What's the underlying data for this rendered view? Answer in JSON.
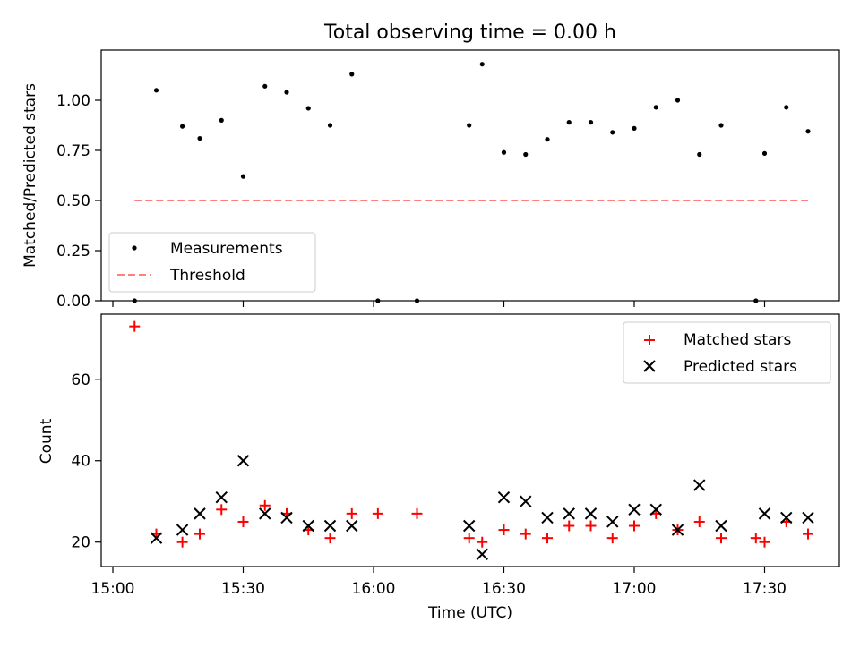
{
  "chart_data": [
    {
      "type": "scatter",
      "title": "Total observing time = 0.00 h",
      "xlabel": "",
      "ylabel": "Matched/Predicted stars",
      "ylim": [
        0,
        1.25
      ],
      "yticks": [
        "0.00",
        "0.25",
        "0.50",
        "0.75",
        "1.00"
      ],
      "legend_position": "lower-left",
      "series": [
        {
          "name": "Measurements",
          "kind": "dot",
          "color": "#000000",
          "points": [
            [
              5,
              0.0
            ],
            [
              10,
              1.05
            ],
            [
              16,
              0.87
            ],
            [
              20,
              0.81
            ],
            [
              25,
              0.9
            ],
            [
              30,
              0.62
            ],
            [
              35,
              1.07
            ],
            [
              40,
              1.04
            ],
            [
              45,
              0.96
            ],
            [
              50,
              0.875
            ],
            [
              55,
              1.13
            ],
            [
              61,
              0.0
            ],
            [
              70,
              0.0
            ],
            [
              82,
              0.875
            ],
            [
              85,
              1.18
            ],
            [
              90,
              0.74
            ],
            [
              95,
              0.73
            ],
            [
              100,
              0.805
            ],
            [
              105,
              0.89
            ],
            [
              110,
              0.89
            ],
            [
              115,
              0.84
            ],
            [
              120,
              0.86
            ],
            [
              125,
              0.965
            ],
            [
              130,
              1.0
            ],
            [
              135,
              0.73
            ],
            [
              140,
              0.875
            ],
            [
              148,
              0.0
            ],
            [
              150,
              0.735
            ],
            [
              155,
              0.965
            ],
            [
              160,
              0.845
            ]
          ]
        },
        {
          "name": "Threshold",
          "kind": "dashed-line",
          "color": "#ff7f7f",
          "points": [
            [
              5,
              0.5
            ],
            [
              160,
              0.5
            ]
          ]
        }
      ]
    },
    {
      "type": "scatter",
      "title": "",
      "xlabel": "Time (UTC)",
      "ylabel": "Count",
      "ylim": [
        14,
        76
      ],
      "yticks": [
        "20",
        "40",
        "60"
      ],
      "xticks": [
        "15:00",
        "15:30",
        "16:00",
        "16:30",
        "17:00",
        "17:30"
      ],
      "legend_position": "upper-right",
      "series": [
        {
          "name": "Matched stars",
          "kind": "plus",
          "color": "#ff0000",
          "points": [
            [
              5,
              73
            ],
            [
              10,
              22
            ],
            [
              16,
              20
            ],
            [
              20,
              22
            ],
            [
              25,
              28
            ],
            [
              30,
              25
            ],
            [
              35,
              29
            ],
            [
              40,
              27
            ],
            [
              45,
              23
            ],
            [
              50,
              21
            ],
            [
              55,
              27
            ],
            [
              61,
              27
            ],
            [
              70,
              27
            ],
            [
              82,
              21
            ],
            [
              85,
              20
            ],
            [
              90,
              23
            ],
            [
              95,
              22
            ],
            [
              100,
              21
            ],
            [
              105,
              24
            ],
            [
              110,
              24
            ],
            [
              115,
              21
            ],
            [
              120,
              24
            ],
            [
              125,
              27
            ],
            [
              130,
              23
            ],
            [
              135,
              25
            ],
            [
              140,
              21
            ],
            [
              148,
              21
            ],
            [
              150,
              20
            ],
            [
              155,
              25
            ],
            [
              160,
              22
            ]
          ]
        },
        {
          "name": "Predicted stars",
          "kind": "cross",
          "color": "#000000",
          "points": [
            [
              10,
              21
            ],
            [
              16,
              23
            ],
            [
              20,
              27
            ],
            [
              25,
              31
            ],
            [
              30,
              40
            ],
            [
              35,
              27
            ],
            [
              40,
              26
            ],
            [
              45,
              24
            ],
            [
              50,
              24
            ],
            [
              55,
              24
            ],
            [
              82,
              24
            ],
            [
              85,
              17
            ],
            [
              90,
              31
            ],
            [
              95,
              30
            ],
            [
              100,
              26
            ],
            [
              105,
              27
            ],
            [
              110,
              27
            ],
            [
              115,
              25
            ],
            [
              120,
              28
            ],
            [
              125,
              28
            ],
            [
              130,
              23
            ],
            [
              135,
              34
            ],
            [
              140,
              24
            ],
            [
              150,
              27
            ],
            [
              155,
              26
            ],
            [
              160,
              26
            ]
          ]
        }
      ]
    }
  ]
}
